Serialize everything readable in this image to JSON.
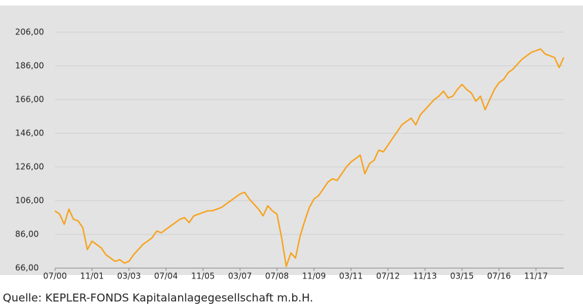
{
  "chart_data": {
    "type": "line",
    "source": "Quelle: KEPLER-FONDS Kapitalanlagegesellschaft m.b.H.",
    "categories": [
      "07/00",
      null,
      null,
      null,
      null,
      null,
      null,
      null,
      "11/01",
      null,
      null,
      null,
      null,
      null,
      null,
      null,
      "03/03",
      null,
      null,
      null,
      null,
      null,
      null,
      null,
      "07/04",
      null,
      null,
      null,
      null,
      null,
      null,
      null,
      "11/05",
      null,
      null,
      null,
      null,
      null,
      null,
      null,
      "03/07",
      null,
      null,
      null,
      null,
      null,
      null,
      null,
      "07/08",
      null,
      null,
      null,
      null,
      null,
      null,
      null,
      "11/09",
      null,
      null,
      null,
      null,
      null,
      null,
      null,
      "03/11",
      null,
      null,
      null,
      null,
      null,
      null,
      null,
      "07/12",
      null,
      null,
      null,
      null,
      null,
      null,
      null,
      "11/13",
      null,
      null,
      null,
      null,
      null,
      null,
      null,
      "03/15",
      null,
      null,
      null,
      null,
      null,
      null,
      null,
      "07/16",
      null,
      null,
      null,
      null,
      null,
      null,
      null,
      "11/17",
      null,
      null,
      null,
      null,
      null,
      null
    ],
    "values": [
      100,
      98,
      92,
      101,
      95,
      94,
      90,
      77,
      82,
      80,
      78,
      74,
      72,
      70,
      71,
      69,
      70,
      74,
      77,
      80,
      82,
      84,
      88,
      87,
      89,
      91,
      93,
      95,
      96,
      93,
      97,
      98,
      99,
      100,
      100,
      101,
      102,
      104,
      106,
      108,
      110,
      111,
      107,
      104,
      101,
      97,
      103,
      100,
      98,
      84,
      67,
      75,
      72,
      85,
      94,
      102,
      107,
      109,
      113,
      117,
      119,
      118,
      122,
      126,
      129,
      131,
      133,
      122,
      128,
      130,
      136,
      135,
      139,
      143,
      147,
      151,
      153,
      155,
      151,
      157,
      160,
      163,
      166,
      168,
      171,
      167,
      168,
      172,
      175,
      172,
      170,
      165,
      168,
      160,
      166,
      172,
      176,
      178,
      182,
      184,
      187,
      190,
      192,
      194,
      195,
      196,
      193,
      192,
      191,
      185,
      191
    ],
    "color": "#f7a11a",
    "ylim": [
      66,
      221
    ],
    "yticks": [
      {
        "value": 66,
        "label": "66,00"
      },
      {
        "value": 86,
        "label": "86,00"
      },
      {
        "value": 106,
        "label": "106,00"
      },
      {
        "value": 126,
        "label": "126,00"
      },
      {
        "value": 146,
        "label": "146,00"
      },
      {
        "value": 166,
        "label": "166,00"
      },
      {
        "value": 186,
        "label": "186,00"
      },
      {
        "value": 206,
        "label": "206,00"
      }
    ],
    "grid": true
  }
}
